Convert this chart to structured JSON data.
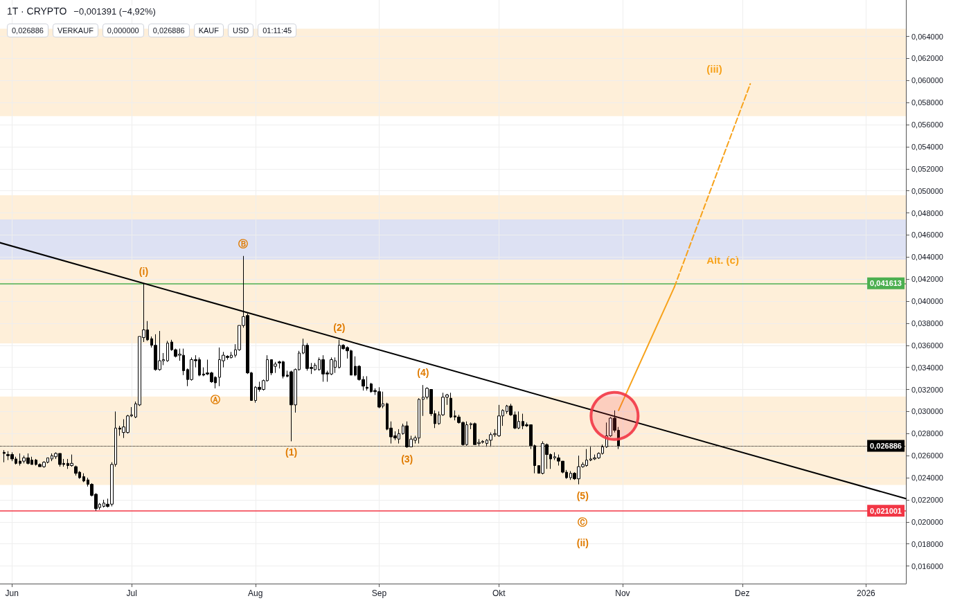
{
  "chart_data": {
    "type": "candlestick",
    "title": "1T · CRYPTO",
    "subtitle": "−0,001391 (−4,92%)",
    "color": "#000000",
    "x": [
      "2025-05-30",
      "2025-05-31",
      "2025-06-01",
      "2025-06-02",
      "2025-06-03",
      "2025-06-04",
      "2025-06-05",
      "2025-06-06",
      "2025-06-07",
      "2025-06-08",
      "2025-06-09",
      "2025-06-10",
      "2025-06-11",
      "2025-06-12",
      "2025-06-13",
      "2025-06-14",
      "2025-06-15",
      "2025-06-16",
      "2025-06-17",
      "2025-06-18",
      "2025-06-19",
      "2025-06-20",
      "2025-06-21",
      "2025-06-22",
      "2025-06-23",
      "2025-06-24",
      "2025-06-25",
      "2025-06-26",
      "2025-06-27",
      "2025-06-28",
      "2025-06-29",
      "2025-06-30",
      "2025-07-01",
      "2025-07-02",
      "2025-07-03",
      "2025-07-04",
      "2025-07-05",
      "2025-07-06",
      "2025-07-07",
      "2025-07-08",
      "2025-07-09",
      "2025-07-10",
      "2025-07-11",
      "2025-07-12",
      "2025-07-13",
      "2025-07-14",
      "2025-07-15",
      "2025-07-16",
      "2025-07-17",
      "2025-07-18",
      "2025-07-19",
      "2025-07-20",
      "2025-07-21",
      "2025-07-22",
      "2025-07-23",
      "2025-07-24",
      "2025-07-25",
      "2025-07-26",
      "2025-07-27",
      "2025-07-28",
      "2025-07-29",
      "2025-07-30",
      "2025-07-31",
      "2025-08-01",
      "2025-08-02",
      "2025-08-03",
      "2025-08-04",
      "2025-08-05",
      "2025-08-06",
      "2025-08-07",
      "2025-08-08",
      "2025-08-09",
      "2025-08-10",
      "2025-08-11",
      "2025-08-12",
      "2025-08-13",
      "2025-08-14",
      "2025-08-15",
      "2025-08-16",
      "2025-08-17",
      "2025-08-18",
      "2025-08-19",
      "2025-08-20",
      "2025-08-21",
      "2025-08-22",
      "2025-08-23",
      "2025-08-24",
      "2025-08-25",
      "2025-08-26",
      "2025-08-27",
      "2025-08-28",
      "2025-08-29",
      "2025-08-30",
      "2025-08-31",
      "2025-09-01",
      "2025-09-02",
      "2025-09-03",
      "2025-09-04",
      "2025-09-05",
      "2025-09-06",
      "2025-09-07",
      "2025-09-08",
      "2025-09-09",
      "2025-09-10",
      "2025-09-11",
      "2025-09-12",
      "2025-09-13",
      "2025-09-14",
      "2025-09-15",
      "2025-09-16",
      "2025-09-17",
      "2025-09-18",
      "2025-09-19",
      "2025-09-20",
      "2025-09-21",
      "2025-09-22",
      "2025-09-23",
      "2025-09-24",
      "2025-09-25",
      "2025-09-26",
      "2025-09-27",
      "2025-09-28",
      "2025-09-29",
      "2025-09-30",
      "2025-10-01",
      "2025-10-02",
      "2025-10-03",
      "2025-10-04",
      "2025-10-05",
      "2025-10-06",
      "2025-10-07",
      "2025-10-08",
      "2025-10-09",
      "2025-10-10",
      "2025-10-11",
      "2025-10-12",
      "2025-10-13",
      "2025-10-14",
      "2025-10-15",
      "2025-10-16",
      "2025-10-17",
      "2025-10-18",
      "2025-10-19",
      "2025-10-20",
      "2025-10-21",
      "2025-10-22",
      "2025-10-23",
      "2025-10-24",
      "2025-10-25",
      "2025-10-26",
      "2025-10-27",
      "2025-10-28",
      "2025-10-29",
      "2025-10-30",
      "2025-10-31"
    ],
    "ohlc": [
      [
        0.0263,
        0.0265,
        0.0254,
        0.0262
      ],
      [
        0.0261,
        0.0264,
        0.0256,
        0.026
      ],
      [
        0.0261,
        0.0263,
        0.0255,
        0.0257
      ],
      [
        0.0257,
        0.0259,
        0.0252,
        0.0253
      ],
      [
        0.0255,
        0.0262,
        0.0251,
        0.0253
      ],
      [
        0.0255,
        0.026,
        0.0253,
        0.0258
      ],
      [
        0.0258,
        0.0262,
        0.0252,
        0.0253
      ],
      [
        0.0256,
        0.0259,
        0.0252,
        0.0252
      ],
      [
        0.0256,
        0.0257,
        0.0251,
        0.0252
      ],
      [
        0.0252,
        0.0253,
        0.025,
        0.025
      ],
      [
        0.025,
        0.0255,
        0.0249,
        0.0254
      ],
      [
        0.0254,
        0.0258,
        0.0253,
        0.0258
      ],
      [
        0.0257,
        0.0262,
        0.0255,
        0.026
      ],
      [
        0.0259,
        0.0263,
        0.0257,
        0.0262
      ],
      [
        0.0262,
        0.0262,
        0.025,
        0.0252
      ],
      [
        0.0253,
        0.0257,
        0.025,
        0.0252
      ],
      [
        0.0253,
        0.0257,
        0.0248,
        0.0251
      ],
      [
        0.0251,
        0.0261,
        0.025,
        0.0253
      ],
      [
        0.025,
        0.0251,
        0.0242,
        0.0244
      ],
      [
        0.0245,
        0.0246,
        0.0239,
        0.024
      ],
      [
        0.0241,
        0.0244,
        0.0236,
        0.0237
      ],
      [
        0.0238,
        0.024,
        0.0232,
        0.0234
      ],
      [
        0.0234,
        0.0235,
        0.0223,
        0.0224
      ],
      [
        0.0225,
        0.0226,
        0.021,
        0.0212
      ],
      [
        0.0213,
        0.0217,
        0.0211,
        0.0216
      ],
      [
        0.0214,
        0.022,
        0.0213,
        0.0217
      ],
      [
        0.0216,
        0.0221,
        0.0213,
        0.0214
      ],
      [
        0.0216,
        0.0254,
        0.0214,
        0.0252
      ],
      [
        0.0252,
        0.03,
        0.025,
        0.0285
      ],
      [
        0.0285,
        0.0287,
        0.0278,
        0.0284
      ],
      [
        0.0281,
        0.0293,
        0.0276,
        0.0286
      ],
      [
        0.0281,
        0.0297,
        0.028,
        0.0296
      ],
      [
        0.0296,
        0.0304,
        0.0295,
        0.0297
      ],
      [
        0.0295,
        0.0309,
        0.0294,
        0.0307
      ],
      [
        0.0306,
        0.0368,
        0.0305,
        0.0368
      ],
      [
        0.0367,
        0.0416,
        0.0363,
        0.0374
      ],
      [
        0.0374,
        0.0382,
        0.0364,
        0.0365
      ],
      [
        0.0366,
        0.0368,
        0.0358,
        0.036
      ],
      [
        0.036,
        0.037,
        0.0337,
        0.0338
      ],
      [
        0.0338,
        0.0373,
        0.0337,
        0.0346
      ],
      [
        0.0346,
        0.0353,
        0.0342,
        0.0347
      ],
      [
        0.0346,
        0.0364,
        0.0345,
        0.0362
      ],
      [
        0.0363,
        0.0365,
        0.0355,
        0.0356
      ],
      [
        0.0356,
        0.0357,
        0.0349,
        0.035
      ],
      [
        0.0351,
        0.0357,
        0.0346,
        0.0352
      ],
      [
        0.0351,
        0.0357,
        0.0333,
        0.0337
      ],
      [
        0.0338,
        0.0339,
        0.0323,
        0.0329
      ],
      [
        0.0329,
        0.0349,
        0.0328,
        0.0347
      ],
      [
        0.0347,
        0.0351,
        0.034,
        0.0346
      ],
      [
        0.0347,
        0.0349,
        0.0332,
        0.0333
      ],
      [
        0.0334,
        0.034,
        0.0332,
        0.0333
      ],
      [
        0.0335,
        0.0347,
        0.0333,
        0.0334
      ],
      [
        0.0335,
        0.0336,
        0.0326,
        0.0327
      ],
      [
        0.0331,
        0.0332,
        0.0321,
        0.0326
      ],
      [
        0.0331,
        0.0358,
        0.0323,
        0.0347
      ],
      [
        0.0346,
        0.0354,
        0.034,
        0.0351
      ],
      [
        0.035,
        0.0351,
        0.0347,
        0.0349
      ],
      [
        0.0349,
        0.0354,
        0.0348,
        0.0351
      ],
      [
        0.0351,
        0.0361,
        0.0349,
        0.0356
      ],
      [
        0.0356,
        0.0378,
        0.0355,
        0.0378
      ],
      [
        0.0378,
        0.0441,
        0.0376,
        0.0386
      ],
      [
        0.0387,
        0.0389,
        0.0334,
        0.0335
      ],
      [
        0.0335,
        0.0336,
        0.031,
        0.031
      ],
      [
        0.031,
        0.0323,
        0.0308,
        0.0322
      ],
      [
        0.0322,
        0.0327,
        0.0318,
        0.032
      ],
      [
        0.032,
        0.0329,
        0.0319,
        0.0328
      ],
      [
        0.0328,
        0.0351,
        0.0327,
        0.0347
      ],
      [
        0.0347,
        0.0347,
        0.0333,
        0.0335
      ],
      [
        0.0341,
        0.0345,
        0.0335,
        0.0343
      ],
      [
        0.0345,
        0.0346,
        0.0339,
        0.0344
      ],
      [
        0.0345,
        0.0346,
        0.033,
        0.0332
      ],
      [
        0.0333,
        0.0337,
        0.0331,
        0.0332
      ],
      [
        0.0336,
        0.0337,
        0.0273,
        0.0306
      ],
      [
        0.0306,
        0.0339,
        0.0299,
        0.0338
      ],
      [
        0.0338,
        0.0355,
        0.0337,
        0.0353
      ],
      [
        0.0353,
        0.0366,
        0.0352,
        0.036
      ],
      [
        0.036,
        0.0362,
        0.0337,
        0.0339
      ],
      [
        0.034,
        0.0344,
        0.0334,
        0.0339
      ],
      [
        0.0338,
        0.0344,
        0.0337,
        0.0342
      ],
      [
        0.0338,
        0.0349,
        0.0337,
        0.0347
      ],
      [
        0.0347,
        0.0351,
        0.0327,
        0.0334
      ],
      [
        0.0335,
        0.0337,
        0.0327,
        0.0334
      ],
      [
        0.0334,
        0.0349,
        0.0333,
        0.0347
      ],
      [
        0.034,
        0.0349,
        0.0335,
        0.0346
      ],
      [
        0.034,
        0.0365,
        0.0339,
        0.036
      ],
      [
        0.036,
        0.0361,
        0.0356,
        0.0357
      ],
      [
        0.0358,
        0.0359,
        0.0348,
        0.0355
      ],
      [
        0.0355,
        0.0356,
        0.0333,
        0.0333
      ],
      [
        0.0341,
        0.035,
        0.0332,
        0.0333
      ],
      [
        0.0341,
        0.0342,
        0.0328,
        0.0329
      ],
      [
        0.0329,
        0.0332,
        0.0319,
        0.0323
      ],
      [
        0.0322,
        0.0332,
        0.0319,
        0.0321
      ],
      [
        0.0325,
        0.0326,
        0.0317,
        0.0318
      ],
      [
        0.0319,
        0.0321,
        0.0315,
        0.0318
      ],
      [
        0.0318,
        0.0322,
        0.0303,
        0.0304
      ],
      [
        0.0305,
        0.0318,
        0.0303,
        0.0307
      ],
      [
        0.0307,
        0.0308,
        0.0283,
        0.0284
      ],
      [
        0.0285,
        0.0291,
        0.0271,
        0.0277
      ],
      [
        0.0278,
        0.0282,
        0.0274,
        0.0276
      ],
      [
        0.0275,
        0.0284,
        0.0271,
        0.028
      ],
      [
        0.028,
        0.0289,
        0.0279,
        0.0287
      ],
      [
        0.0287,
        0.0291,
        0.0267,
        0.0268
      ],
      [
        0.0268,
        0.0278,
        0.0268,
        0.0275
      ],
      [
        0.0274,
        0.0278,
        0.0271,
        0.0276
      ],
      [
        0.0276,
        0.0312,
        0.0271,
        0.0311
      ],
      [
        0.0311,
        0.0324,
        0.0296,
        0.0313
      ],
      [
        0.0313,
        0.0322,
        0.0311,
        0.0321
      ],
      [
        0.032,
        0.032,
        0.0296,
        0.0298
      ],
      [
        0.0298,
        0.0301,
        0.0285,
        0.0289
      ],
      [
        0.0289,
        0.03,
        0.0288,
        0.0297
      ],
      [
        0.0297,
        0.0317,
        0.0296,
        0.0313
      ],
      [
        0.0313,
        0.0316,
        0.0306,
        0.0315
      ],
      [
        0.0312,
        0.0317,
        0.0294,
        0.0295
      ],
      [
        0.0296,
        0.0301,
        0.0292,
        0.0295
      ],
      [
        0.0295,
        0.0297,
        0.0289,
        0.029
      ],
      [
        0.029,
        0.0291,
        0.0269,
        0.027
      ],
      [
        0.027,
        0.0291,
        0.0269,
        0.0288
      ],
      [
        0.0288,
        0.029,
        0.0284,
        0.0289
      ],
      [
        0.0289,
        0.029,
        0.027,
        0.027
      ],
      [
        0.0271,
        0.0275,
        0.0269,
        0.0272
      ],
      [
        0.0272,
        0.0274,
        0.0271,
        0.0273
      ],
      [
        0.0271,
        0.0275,
        0.0268,
        0.0274
      ],
      [
        0.0274,
        0.0281,
        0.0268,
        0.0279
      ],
      [
        0.0279,
        0.0284,
        0.0277,
        0.028
      ],
      [
        0.0278,
        0.0306,
        0.0277,
        0.0296
      ],
      [
        0.0296,
        0.0302,
        0.0287,
        0.0301
      ],
      [
        0.03,
        0.0306,
        0.0298,
        0.0305
      ],
      [
        0.0305,
        0.0307,
        0.0296,
        0.0297
      ],
      [
        0.0297,
        0.03,
        0.0284,
        0.0285
      ],
      [
        0.0285,
        0.03,
        0.0284,
        0.0291
      ],
      [
        0.0291,
        0.0298,
        0.0284,
        0.0287
      ],
      [
        0.0288,
        0.029,
        0.0286,
        0.0287
      ],
      [
        0.0288,
        0.0288,
        0.0266,
        0.0269
      ],
      [
        0.0269,
        0.027,
        0.0244,
        0.0251
      ],
      [
        0.0251,
        0.0251,
        0.0244,
        0.0244
      ],
      [
        0.0244,
        0.0273,
        0.0243,
        0.0271
      ],
      [
        0.027,
        0.0271,
        0.0248,
        0.0261
      ],
      [
        0.0261,
        0.0262,
        0.0248,
        0.0257
      ],
      [
        0.0258,
        0.0263,
        0.0256,
        0.0259
      ],
      [
        0.0258,
        0.0261,
        0.0251,
        0.0255
      ],
      [
        0.0255,
        0.0255,
        0.0244,
        0.0245
      ],
      [
        0.0245,
        0.0247,
        0.0239,
        0.024
      ],
      [
        0.024,
        0.0246,
        0.0238,
        0.0244
      ],
      [
        0.0244,
        0.0245,
        0.0238,
        0.0239
      ],
      [
        0.0239,
        0.026,
        0.0234,
        0.025
      ],
      [
        0.025,
        0.0254,
        0.0249,
        0.0252
      ],
      [
        0.0251,
        0.0266,
        0.025,
        0.0256
      ],
      [
        0.0256,
        0.0268,
        0.0255,
        0.0257
      ],
      [
        0.0257,
        0.0261,
        0.0256,
        0.0258
      ],
      [
        0.0258,
        0.0263,
        0.0257,
        0.0262
      ],
      [
        0.0262,
        0.027,
        0.0261,
        0.0268
      ],
      [
        0.0268,
        0.029,
        0.0267,
        0.0278
      ],
      [
        0.0278,
        0.0295,
        0.0277,
        0.0294
      ],
      [
        0.0294,
        0.0301,
        0.0281,
        0.0283
      ],
      [
        0.0283,
        0.0286,
        0.0266,
        0.026886
      ]
    ],
    "series": [
      {
        "type": "line",
        "color": "#000000",
        "x": [
          "2025-05-29",
          "2026-01-11"
        ],
        "values": [
          0.0453,
          0.0221
        ],
        "line_style": "solid"
      },
      {
        "type": "line",
        "color": "#f7a21b",
        "x": [
          "2025-10-31",
          "2025-11-14"
        ],
        "values": [
          0.0301,
          0.0413
        ],
        "line_style": "solid"
      },
      {
        "type": "line",
        "color": "#f7a21b",
        "x": [
          "2025-11-14",
          "2025-12-03"
        ],
        "values": [
          0.0413,
          0.0597
        ],
        "line_style": "dashed"
      },
      {
        "type": "scatter",
        "color": "#f23645",
        "x": [
          "2025-10-30"
        ],
        "values": [
          0.0296
        ],
        "marker": "circle"
      }
    ],
    "marker": "none",
    "xlim": [
      "2025-05-29",
      "2026-01-11"
    ],
    "xticks": [
      {
        "value": "2025-06-01",
        "label": "Jun"
      },
      {
        "value": "2025-07-01",
        "label": "Jul"
      },
      {
        "value": "2025-08-01",
        "label": "Aug"
      },
      {
        "value": "2025-09-01",
        "label": "Sep"
      },
      {
        "value": "2025-10-01",
        "label": "Okt"
      },
      {
        "value": "2025-11-01",
        "label": "Nov"
      },
      {
        "value": "2025-12-01",
        "label": "Dez"
      },
      {
        "value": "2026-01-01",
        "label": "2026"
      }
    ],
    "ylim": [
      0.0144,
      0.0673
    ],
    "yticks": [
      {
        "value": 0.016,
        "label": "0,016000"
      },
      {
        "value": 0.018,
        "label": "0,018000"
      },
      {
        "value": 0.02,
        "label": "0,020000"
      },
      {
        "value": 0.022,
        "label": "0,022000"
      },
      {
        "value": 0.024,
        "label": "0,024000"
      },
      {
        "value": 0.026,
        "label": "0,026000"
      },
      {
        "value": 0.028,
        "label": "0,028000"
      },
      {
        "value": 0.03,
        "label": "0,030000"
      },
      {
        "value": 0.032,
        "label": "0,032000"
      },
      {
        "value": 0.034,
        "label": "0,034000"
      },
      {
        "value": 0.036,
        "label": "0,036000"
      },
      {
        "value": 0.038,
        "label": "0,038000"
      },
      {
        "value": 0.04,
        "label": "0,040000"
      },
      {
        "value": 0.042,
        "label": "0,042000"
      },
      {
        "value": 0.044,
        "label": "0,044000"
      },
      {
        "value": 0.046,
        "label": "0,046000"
      },
      {
        "value": 0.048,
        "label": "0,048000"
      },
      {
        "value": 0.05,
        "label": "0,050000"
      },
      {
        "value": 0.052,
        "label": "0,052000"
      },
      {
        "value": 0.054,
        "label": "0,054000"
      },
      {
        "value": 0.056,
        "label": "0,056000"
      },
      {
        "value": 0.058,
        "label": "0,058000"
      },
      {
        "value": 0.06,
        "label": "0,060000"
      },
      {
        "value": 0.062,
        "label": "0,062000"
      },
      {
        "value": 0.064,
        "label": "0,064000"
      }
    ],
    "grid": true,
    "ref_lines": [
      {
        "axis": "y",
        "value": 0.041613,
        "label": "0,041613",
        "color": "#4caf50",
        "line_style": "solid"
      },
      {
        "axis": "y",
        "value": 0.021001,
        "label": "0,021001",
        "color": "#f23645",
        "line_style": "solid"
      },
      {
        "axis": "y",
        "value": 0.026886,
        "label": "0,026886",
        "color": "#000000",
        "line_style": "dotted"
      }
    ],
    "bands": [
      {
        "axis": "y",
        "from": 0.02334,
        "to": 0.03136,
        "color": "#fde9cc"
      },
      {
        "axis": "y",
        "from": 0.03617,
        "to": 0.04961,
        "color": "#fde9cc",
        "label": "Alt. (c)"
      },
      {
        "axis": "y",
        "from": 0.05677,
        "to": 0.0647,
        "color": "#fde9cc",
        "label": "(iii)"
      },
      {
        "axis": "y",
        "from": 0.04377,
        "to": 0.04741,
        "color": "#d1dcfb"
      }
    ],
    "annotations": [
      "0,026886",
      "VERKAUF",
      "0,000000",
      "0,026886",
      "KAUF",
      "USD",
      "01:11:45",
      {
        "text": "(i)",
        "x": "2025-07-04",
        "y": 0.0416
      },
      {
        "text": "Ⓐ",
        "x": "2025-07-22",
        "y": 0.0321
      },
      {
        "text": "Ⓑ",
        "x": "2025-07-29",
        "y": 0.0441
      },
      {
        "text": "(1)",
        "x": "2025-08-10",
        "y": 0.0273
      },
      {
        "text": "(2)",
        "x": "2025-08-22",
        "y": 0.0365
      },
      {
        "text": "(3)",
        "x": "2025-09-08",
        "y": 0.0267
      },
      {
        "text": "(4)",
        "x": "2025-09-12",
        "y": 0.0324
      },
      {
        "text": "(5)",
        "x": "2025-10-22",
        "y": 0.0234
      },
      {
        "text": "Ⓒ",
        "x": "2025-10-22",
        "y": 0.021001
      },
      {
        "text": "(ii)",
        "x": "2025-10-22",
        "y": 0.021001
      }
    ]
  }
}
